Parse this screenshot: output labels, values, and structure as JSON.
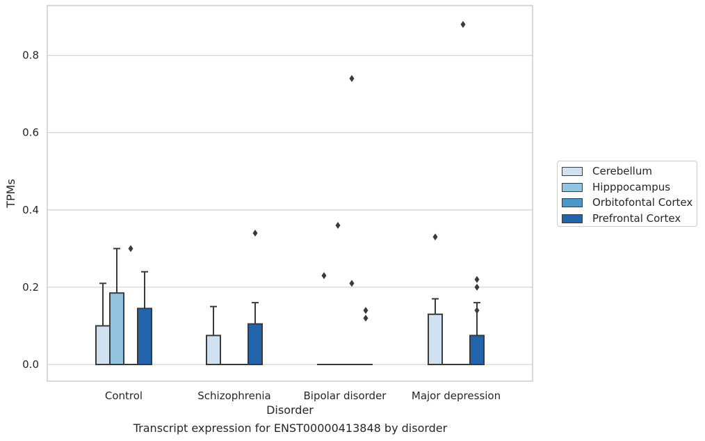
{
  "caption": "Transcript expression for ENST00000413848 by disorder",
  "chart_data": {
    "type": "bar",
    "xlabel": "Disorder",
    "ylabel": "TPMs",
    "ylim": [
      -0.042,
      0.928
    ],
    "yticks": [
      "0.0",
      "0.2",
      "0.4",
      "0.6",
      "0.8"
    ],
    "grid": true,
    "legend_position": "right",
    "categories": [
      "Control",
      "Schizophrenia",
      "Bipolar disorder",
      "Major depression"
    ],
    "series": [
      {
        "name": "Cerebellum",
        "color": "#d0e1f2",
        "values": [
          0.1,
          0.075,
          0.0,
          0.13
        ],
        "error_upper": [
          0.21,
          0.15,
          null,
          0.17
        ],
        "outliers": [
          [],
          [],
          [
            0.23
          ],
          [
            0.33
          ]
        ]
      },
      {
        "name": "Hipppocampus",
        "color": "#94c4df",
        "values": [
          0.185,
          0.0,
          0.0,
          0.0
        ],
        "error_upper": [
          0.3,
          null,
          null,
          null
        ],
        "outliers": [
          [],
          [],
          [
            0.36
          ],
          []
        ]
      },
      {
        "name": "Orbitofontal Cortex",
        "color": "#4a98c9",
        "values": [
          0.0,
          0.0,
          0.0,
          0.0
        ],
        "error_upper": [
          null,
          null,
          null,
          null
        ],
        "outliers": [
          [
            0.3
          ],
          [],
          [
            0.74,
            0.21
          ],
          [
            0.88
          ]
        ]
      },
      {
        "name": "Prefrontal Cortex",
        "color": "#2164ab",
        "values": [
          0.145,
          0.105,
          0.0,
          0.075
        ],
        "error_upper": [
          0.24,
          0.16,
          null,
          0.16
        ],
        "outliers": [
          [],
          [
            0.34
          ],
          [
            0.14,
            0.12
          ],
          [
            0.22,
            0.2,
            0.14
          ]
        ]
      }
    ]
  }
}
